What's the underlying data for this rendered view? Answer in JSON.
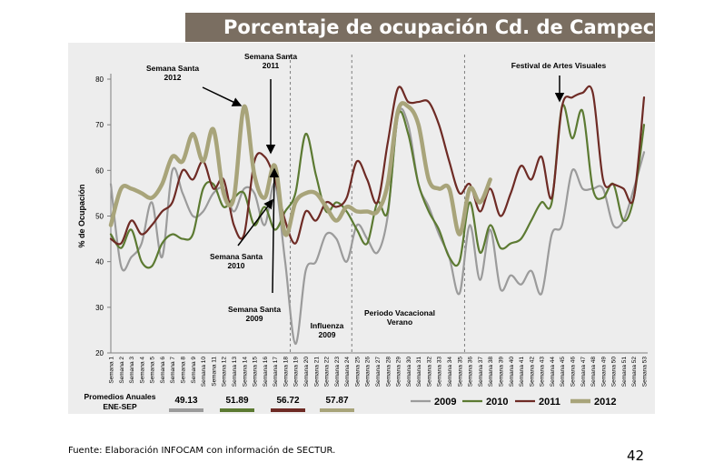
{
  "page": {
    "title": "Porcentaje de ocupación Cd.  de Campeche",
    "source": "Fuente: Elaboración INFOCAM con información de SECTUR.",
    "page_number": "42"
  },
  "chart_data": {
    "type": "line",
    "ylabel": "% de Ocupación",
    "ylim": [
      20,
      80
    ],
    "yticks": [
      20,
      30,
      40,
      50,
      60,
      70,
      80
    ],
    "categories": [
      "Semana 1",
      "Semana 2",
      "Semana 3",
      "Semana 4",
      "Semana 5",
      "Semana 6",
      "Semana 7",
      "Semana 8",
      "Semana 9",
      "Semana 10",
      "Semana 11",
      "Semana 12",
      "Semana 13",
      "Semana 14",
      "Semana 15",
      "Semana 16",
      "Semana 17",
      "Semana 18",
      "Semana 19",
      "Semana 20",
      "Semana 21",
      "Semana 22",
      "Semana 23",
      "Semana 24",
      "Semana 25",
      "Semana 26",
      "Semana 27",
      "Semana 28",
      "Semana 29",
      "Semana 30",
      "Semana 31",
      "Semana 32",
      "Semana 33",
      "Semana 34",
      "Semana 35",
      "Semana 36",
      "Semana 37",
      "Semana 38",
      "Semana 39",
      "Semana 40",
      "Semana 41",
      "Semana 42",
      "Semana 43",
      "Semana 44",
      "Semana 45",
      "Semana 46",
      "Semana 47",
      "Semana 48",
      "Semana 49",
      "Semana 50",
      "Semana 51",
      "Semana 52",
      "Semana 53"
    ],
    "series": [
      {
        "name": "2009",
        "color": "#9b9b9b",
        "width": 2.2,
        "values": [
          57,
          39,
          41,
          44,
          53,
          41,
          60,
          55,
          50,
          51,
          55,
          56,
          51,
          56,
          55,
          48,
          57,
          40,
          22,
          38,
          40,
          46,
          45,
          40,
          48,
          45,
          42,
          50,
          72,
          70,
          57,
          52,
          46,
          41,
          33,
          48,
          36,
          47,
          34,
          37,
          35,
          38,
          33,
          46,
          48,
          60,
          56,
          56,
          56,
          48,
          49,
          56,
          64
        ]
      },
      {
        "name": "2010",
        "color": "#5c7a32",
        "width": 2.2,
        "values": [
          46,
          43,
          47,
          40,
          39,
          44,
          46,
          45,
          46,
          56,
          57,
          52,
          54,
          55,
          48,
          52,
          47,
          51,
          55,
          68,
          59,
          51,
          53,
          51,
          47,
          44,
          53,
          51,
          72,
          68,
          57,
          51,
          47,
          41,
          40,
          53,
          42,
          48,
          43,
          44,
          45,
          49,
          53,
          53,
          74,
          67,
          73,
          56,
          54,
          57,
          49,
          54,
          70
        ]
      },
      {
        "name": "2011",
        "color": "#6e2b25",
        "width": 2.2,
        "values": [
          45,
          44,
          49,
          46,
          48,
          51,
          53,
          60,
          58,
          62,
          56,
          58,
          48,
          46,
          62,
          63,
          58,
          49,
          44,
          51,
          49,
          53,
          52,
          54,
          62,
          58,
          53,
          66,
          78,
          75,
          75,
          75,
          70,
          62,
          55,
          57,
          51,
          56,
          50,
          55,
          61,
          58,
          63,
          54,
          74,
          76,
          77,
          77,
          58,
          57,
          56,
          54,
          76
        ]
      },
      {
        "name": "2012",
        "color": "#a8a47a",
        "width": 4.5,
        "values": [
          48,
          56,
          56,
          55,
          54,
          57,
          63,
          62,
          68,
          62,
          69,
          55,
          54,
          74,
          59,
          54,
          61,
          46,
          53,
          55,
          55,
          52,
          49,
          52,
          51,
          51,
          51,
          57,
          73,
          74,
          70,
          58,
          56,
          56,
          46,
          56,
          53,
          58,
          null,
          null,
          null,
          null,
          null,
          null,
          null,
          null,
          null,
          null,
          null,
          null,
          null,
          null,
          null
        ]
      }
    ],
    "legend": [
      "2009",
      "2010",
      "2011",
      "2012"
    ],
    "annual_averages_label": [
      "Promedios Anuales",
      "ENE-SEP"
    ],
    "annual_averages": [
      {
        "year": "2009",
        "value": "49.13",
        "color": "#9b9b9b"
      },
      {
        "year": "2010",
        "value": "51.89",
        "color": "#5c7a32"
      },
      {
        "year": "2011",
        "value": "56.72",
        "color": "#6e2b25"
      },
      {
        "year": "2012",
        "value": "57.87",
        "color": "#a8a47a"
      }
    ],
    "annotations": [
      {
        "lines": [
          "Semana Santa",
          "2012"
        ]
      },
      {
        "lines": [
          "Semana Santa",
          "2011"
        ]
      },
      {
        "lines": [
          "Semana Santa",
          "2010"
        ]
      },
      {
        "lines": [
          "Semana Santa",
          "2009"
        ]
      },
      {
        "lines": [
          "Influenza",
          "2009"
        ]
      },
      {
        "lines": [
          "Periodo Vacacional",
          "Verano"
        ]
      },
      {
        "lines": [
          "Festival de Artes Visuales"
        ]
      }
    ]
  }
}
